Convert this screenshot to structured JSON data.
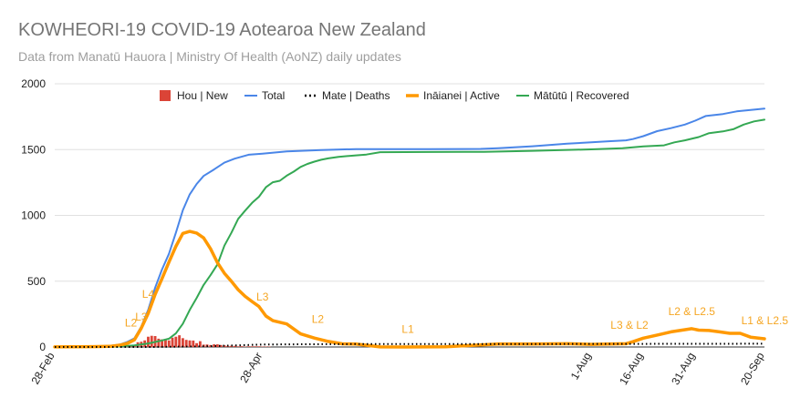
{
  "chart_data": {
    "type": "line",
    "title": "KOWHEORI-19 COVID-19 Aotearoa New Zealand",
    "subtitle": "Data from Manatū Hauora | Ministry Of Health (AoNZ) daily updates",
    "ylim": [
      0,
      2000
    ],
    "yticks": [
      0,
      500,
      1000,
      1500,
      2000
    ],
    "xrange": [
      "2020-02-28",
      "2020-09-20"
    ],
    "xticks": [
      {
        "date": "2020-02-28",
        "label": "28-Feb"
      },
      {
        "date": "2020-04-28",
        "label": "28-Apr"
      },
      {
        "date": "2020-08-01",
        "label": "1-Aug"
      },
      {
        "date": "2020-08-16",
        "label": "16-Aug"
      },
      {
        "date": "2020-08-31",
        "label": "31-Aug"
      },
      {
        "date": "2020-09-20",
        "label": "20-Sep"
      }
    ],
    "grid": "horizontal",
    "legend_position": "top",
    "legend": [
      {
        "key": "new",
        "label": "Hou | New",
        "color": "#db4437",
        "marker": "square"
      },
      {
        "key": "total",
        "label": "Total",
        "color": "#4a86e8",
        "marker": "line"
      },
      {
        "key": "deaths",
        "label": "Mate | Deaths",
        "color": "#000000",
        "marker": "dots"
      },
      {
        "key": "active",
        "label": "Ināianei | Active",
        "color": "#ff9900",
        "marker": "line"
      },
      {
        "key": "recovered",
        "label": "Mātūtū | Recovered",
        "color": "#34a853",
        "marker": "line"
      }
    ],
    "series": [
      {
        "key": "total",
        "points": [
          [
            "2020-02-28",
            1
          ],
          [
            "2020-03-10",
            5
          ],
          [
            "2020-03-15",
            8
          ],
          [
            "2020-03-18",
            20
          ],
          [
            "2020-03-20",
            39
          ],
          [
            "2020-03-22",
            66
          ],
          [
            "2020-03-24",
            155
          ],
          [
            "2020-03-26",
            283
          ],
          [
            "2020-03-28",
            451
          ],
          [
            "2020-03-30",
            589
          ],
          [
            "2020-04-01",
            708
          ],
          [
            "2020-04-03",
            868
          ],
          [
            "2020-04-05",
            1039
          ],
          [
            "2020-04-07",
            1160
          ],
          [
            "2020-04-09",
            1239
          ],
          [
            "2020-04-11",
            1300
          ],
          [
            "2020-04-14",
            1349
          ],
          [
            "2020-04-17",
            1401
          ],
          [
            "2020-04-20",
            1431
          ],
          [
            "2020-04-24",
            1461
          ],
          [
            "2020-04-28",
            1469
          ],
          [
            "2020-05-05",
            1486
          ],
          [
            "2020-05-15",
            1497
          ],
          [
            "2020-05-25",
            1504
          ],
          [
            "2020-06-15",
            1504
          ],
          [
            "2020-06-30",
            1505
          ],
          [
            "2020-07-05",
            1510
          ],
          [
            "2020-07-15",
            1525
          ],
          [
            "2020-07-25",
            1545
          ],
          [
            "2020-08-01",
            1555
          ],
          [
            "2020-08-06",
            1563
          ],
          [
            "2020-08-11",
            1570
          ],
          [
            "2020-08-13",
            1580
          ],
          [
            "2020-08-16",
            1602
          ],
          [
            "2020-08-20",
            1640
          ],
          [
            "2020-08-24",
            1663
          ],
          [
            "2020-08-28",
            1690
          ],
          [
            "2020-08-31",
            1720
          ],
          [
            "2020-09-03",
            1755
          ],
          [
            "2020-09-08",
            1770
          ],
          [
            "2020-09-12",
            1790
          ],
          [
            "2020-09-16",
            1801
          ],
          [
            "2020-09-20",
            1811
          ]
        ]
      },
      {
        "key": "recovered",
        "points": [
          [
            "2020-02-28",
            0
          ],
          [
            "2020-03-15",
            0
          ],
          [
            "2020-03-22",
            12
          ],
          [
            "2020-03-26",
            27
          ],
          [
            "2020-03-30",
            50
          ],
          [
            "2020-04-01",
            63
          ],
          [
            "2020-04-03",
            103
          ],
          [
            "2020-04-05",
            176
          ],
          [
            "2020-04-07",
            282
          ],
          [
            "2020-04-09",
            373
          ],
          [
            "2020-04-11",
            471
          ],
          [
            "2020-04-13",
            546
          ],
          [
            "2020-04-15",
            628
          ],
          [
            "2020-04-17",
            770
          ],
          [
            "2020-04-19",
            867
          ],
          [
            "2020-04-21",
            974
          ],
          [
            "2020-04-23",
            1036
          ],
          [
            "2020-04-25",
            1095
          ],
          [
            "2020-04-27",
            1142
          ],
          [
            "2020-04-29",
            1214
          ],
          [
            "2020-05-01",
            1252
          ],
          [
            "2020-05-03",
            1263
          ],
          [
            "2020-05-05",
            1302
          ],
          [
            "2020-05-07",
            1332
          ],
          [
            "2020-05-09",
            1368
          ],
          [
            "2020-05-11",
            1391
          ],
          [
            "2020-05-13",
            1408
          ],
          [
            "2020-05-15",
            1423
          ],
          [
            "2020-05-17",
            1433
          ],
          [
            "2020-05-20",
            1445
          ],
          [
            "2020-05-25",
            1456
          ],
          [
            "2020-05-28",
            1462
          ],
          [
            "2020-06-01",
            1480
          ],
          [
            "2020-06-15",
            1482
          ],
          [
            "2020-07-01",
            1483
          ],
          [
            "2020-07-15",
            1491
          ],
          [
            "2020-08-01",
            1502
          ],
          [
            "2020-08-10",
            1510
          ],
          [
            "2020-08-16",
            1524
          ],
          [
            "2020-08-22",
            1532
          ],
          [
            "2020-08-25",
            1555
          ],
          [
            "2020-08-28",
            1570
          ],
          [
            "2020-09-01",
            1595
          ],
          [
            "2020-09-04",
            1625
          ],
          [
            "2020-09-08",
            1638
          ],
          [
            "2020-09-11",
            1655
          ],
          [
            "2020-09-14",
            1690
          ],
          [
            "2020-09-17",
            1714
          ],
          [
            "2020-09-20",
            1727
          ]
        ]
      },
      {
        "key": "active",
        "points": [
          [
            "2020-02-28",
            1
          ],
          [
            "2020-03-10",
            3
          ],
          [
            "2020-03-15",
            5
          ],
          [
            "2020-03-18",
            15
          ],
          [
            "2020-03-20",
            28
          ],
          [
            "2020-03-22",
            54
          ],
          [
            "2020-03-24",
            143
          ],
          [
            "2020-03-26",
            256
          ],
          [
            "2020-03-28",
            400
          ],
          [
            "2020-03-30",
            520
          ],
          [
            "2020-04-01",
            645
          ],
          [
            "2020-04-03",
            765
          ],
          [
            "2020-04-05",
            863
          ],
          [
            "2020-04-07",
            878
          ],
          [
            "2020-04-09",
            866
          ],
          [
            "2020-04-11",
            829
          ],
          [
            "2020-04-13",
            746
          ],
          [
            "2020-04-15",
            640
          ],
          [
            "2020-04-17",
            560
          ],
          [
            "2020-04-19",
            500
          ],
          [
            "2020-04-21",
            435
          ],
          [
            "2020-04-23",
            385
          ],
          [
            "2020-04-25",
            345
          ],
          [
            "2020-04-27",
            307
          ],
          [
            "2020-04-29",
            235
          ],
          [
            "2020-05-01",
            200
          ],
          [
            "2020-05-05",
            175
          ],
          [
            "2020-05-09",
            100
          ],
          [
            "2020-05-13",
            68
          ],
          [
            "2020-05-17",
            42
          ],
          [
            "2020-05-21",
            24
          ],
          [
            "2020-05-25",
            22
          ],
          [
            "2020-06-01",
            1
          ],
          [
            "2020-06-08",
            0
          ],
          [
            "2020-06-20",
            2
          ],
          [
            "2020-07-05",
            22
          ],
          [
            "2020-07-15",
            23
          ],
          [
            "2020-07-25",
            25
          ],
          [
            "2020-08-01",
            20
          ],
          [
            "2020-08-06",
            22
          ],
          [
            "2020-08-11",
            25
          ],
          [
            "2020-08-13",
            40
          ],
          [
            "2020-08-16",
            67
          ],
          [
            "2020-08-20",
            91
          ],
          [
            "2020-08-24",
            115
          ],
          [
            "2020-08-27",
            127
          ],
          [
            "2020-08-30",
            139
          ],
          [
            "2020-09-01",
            128
          ],
          [
            "2020-09-04",
            125
          ],
          [
            "2020-09-07",
            115
          ],
          [
            "2020-09-10",
            104
          ],
          [
            "2020-09-13",
            104
          ],
          [
            "2020-09-16",
            75
          ],
          [
            "2020-09-20",
            62
          ]
        ]
      },
      {
        "key": "deaths",
        "points": [
          [
            "2020-02-28",
            0
          ],
          [
            "2020-03-28",
            0
          ],
          [
            "2020-03-29",
            1
          ],
          [
            "2020-04-10",
            4
          ],
          [
            "2020-04-20",
            12
          ],
          [
            "2020-04-28",
            19
          ],
          [
            "2020-05-10",
            21
          ],
          [
            "2020-05-24",
            22
          ],
          [
            "2020-06-30",
            22
          ],
          [
            "2020-08-31",
            24
          ],
          [
            "2020-09-20",
            25
          ]
        ]
      }
    ],
    "new_bars": [
      [
        "2020-03-19",
        8
      ],
      [
        "2020-03-20",
        11
      ],
      [
        "2020-03-21",
        13
      ],
      [
        "2020-03-22",
        14
      ],
      [
        "2020-03-23",
        36
      ],
      [
        "2020-03-24",
        40
      ],
      [
        "2020-03-25",
        50
      ],
      [
        "2020-03-26",
        78
      ],
      [
        "2020-03-27",
        85
      ],
      [
        "2020-03-28",
        83
      ],
      [
        "2020-03-29",
        63
      ],
      [
        "2020-03-30",
        58
      ],
      [
        "2020-03-31",
        61
      ],
      [
        "2020-04-01",
        50
      ],
      [
        "2020-04-02",
        71
      ],
      [
        "2020-04-03",
        78
      ],
      [
        "2020-04-04",
        89
      ],
      [
        "2020-04-05",
        67
      ],
      [
        "2020-04-06",
        54
      ],
      [
        "2020-04-07",
        50
      ],
      [
        "2020-04-08",
        49
      ],
      [
        "2020-04-09",
        29
      ],
      [
        "2020-04-10",
        44
      ],
      [
        "2020-04-11",
        18
      ],
      [
        "2020-04-12",
        19
      ],
      [
        "2020-04-13",
        15
      ],
      [
        "2020-04-14",
        20
      ],
      [
        "2020-04-15",
        20
      ],
      [
        "2020-04-16",
        15
      ],
      [
        "2020-04-17",
        13
      ],
      [
        "2020-04-18",
        8
      ],
      [
        "2020-04-19",
        9
      ],
      [
        "2020-04-20",
        9
      ],
      [
        "2020-04-21",
        5
      ],
      [
        "2020-04-22",
        6
      ],
      [
        "2020-04-23",
        3
      ],
      [
        "2020-04-24",
        5
      ],
      [
        "2020-04-25",
        5
      ],
      [
        "2020-04-26",
        5
      ],
      [
        "2020-04-27",
        5
      ],
      [
        "2020-04-28",
        3
      ],
      [
        "2020-04-29",
        3
      ],
      [
        "2020-04-30",
        3
      ]
    ],
    "annotations": [
      {
        "date": "2020-03-21",
        "value": 185,
        "label": "L2"
      },
      {
        "date": "2020-03-24",
        "value": 230,
        "label": "L3"
      },
      {
        "date": "2020-03-26",
        "value": 400,
        "label": "L4"
      },
      {
        "date": "2020-04-28",
        "value": 380,
        "label": "L3"
      },
      {
        "date": "2020-05-14",
        "value": 210,
        "label": "L2"
      },
      {
        "date": "2020-06-09",
        "value": 135,
        "label": "L1"
      },
      {
        "date": "2020-08-12",
        "value": 165,
        "label": "L3 & L2"
      },
      {
        "date": "2020-08-30",
        "value": 270,
        "label": "L2 & L2.5"
      },
      {
        "date": "2020-09-21",
        "value": 200,
        "label": "L1 & L2.5"
      }
    ]
  }
}
